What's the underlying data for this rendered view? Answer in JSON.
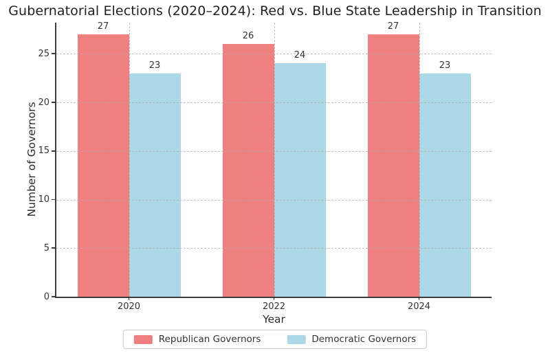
{
  "chart_data": {
    "type": "bar",
    "title": "Gubernatorial Elections (2020–2024): Red vs. Blue State Leadership in Transition",
    "xlabel": "Year",
    "ylabel": "Number of Governors",
    "categories": [
      "2020",
      "2022",
      "2024"
    ],
    "series": [
      {
        "name": "Republican Governors",
        "color": "#F08080",
        "values": [
          27,
          26,
          27
        ]
      },
      {
        "name": "Democratic Governors",
        "color": "#ADD8E6",
        "values": [
          23,
          24,
          23
        ]
      }
    ],
    "bar_value_labels": [
      [
        27,
        26,
        27
      ],
      [
        23,
        24,
        23
      ]
    ],
    "yticks": [
      0,
      5,
      10,
      15,
      20,
      25
    ],
    "ylim": [
      0,
      28.2
    ],
    "grid": true,
    "grid_style": "dashed",
    "legend_position": "bottom-center"
  },
  "colors": {
    "background": "#ffffff",
    "spine": "#3c3c3c",
    "grid": "#c8c8c8",
    "text": "#333333",
    "title_text": "#1f1f1f",
    "legend_border": "#cccccc"
  }
}
